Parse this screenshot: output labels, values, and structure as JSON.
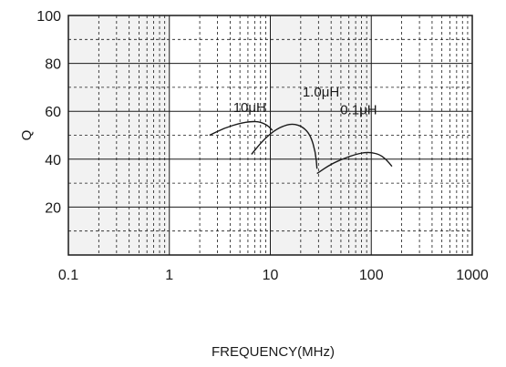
{
  "chart_data": {
    "type": "line",
    "title": "",
    "xlabel": "FREQUENCY(MHz)",
    "ylabel": "Q",
    "x_scale": "log",
    "xlim": [
      0.1,
      1000
    ],
    "ylim": [
      0,
      100
    ],
    "x_ticks": [
      "0.1",
      "1",
      "10",
      "100",
      "1000"
    ],
    "y_ticks": [
      "20",
      "40",
      "60",
      "80",
      "100"
    ],
    "grid": true,
    "shaded_decades": [
      [
        0.1,
        1
      ],
      [
        10,
        100
      ]
    ],
    "colors": {
      "shade": "#f2f2f2",
      "line": "#1a1a1a",
      "grid": "#1a1a1a"
    },
    "series": [
      {
        "name": "10μH",
        "x": [
          2.5,
          3.5,
          5,
          6.5,
          8,
          9.5,
          10.5
        ],
        "y": [
          50,
          53,
          55,
          55.8,
          55.5,
          54,
          52
        ]
      },
      {
        "name": "1.0μH",
        "x": [
          6.5,
          8.5,
          11,
          14,
          17,
          21,
          25,
          28,
          29
        ],
        "y": [
          42,
          48,
          52,
          54.2,
          54.8,
          53.5,
          50,
          43,
          36
        ]
      },
      {
        "name": "0.1μH",
        "x": [
          29,
          40,
          55,
          70,
          85,
          100,
          120,
          140,
          160
        ],
        "y": [
          34,
          38,
          40.5,
          42,
          42.8,
          42.8,
          42,
          40,
          37
        ]
      }
    ]
  }
}
